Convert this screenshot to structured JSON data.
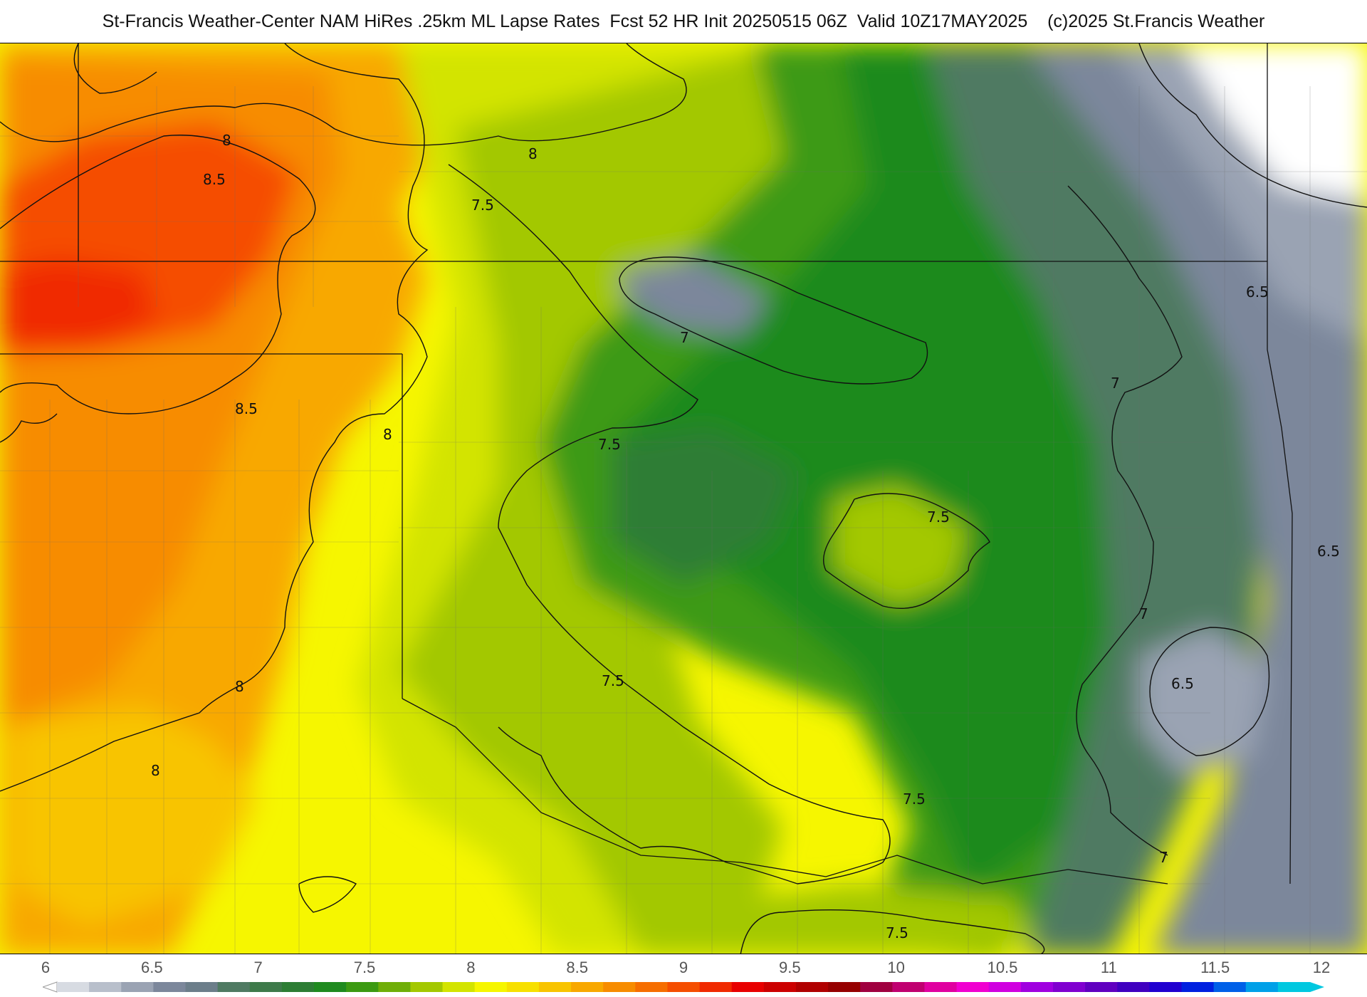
{
  "header": {
    "title": "St-Francis Weather-Center NAM HiRes .25km ML Lapse Rates  Fcst 52 HR Init 20250515 06Z  Valid 10Z17MAY2025    (c)2025 St.Francis Weather"
  },
  "map": {
    "contour_labels": [
      {
        "text": "8"
      },
      {
        "text": "8"
      },
      {
        "text": "8.5"
      },
      {
        "text": "7.5"
      },
      {
        "text": "7"
      },
      {
        "text": "6.5"
      },
      {
        "text": "8.5"
      },
      {
        "text": "8"
      },
      {
        "text": "7.5"
      },
      {
        "text": "7.5"
      },
      {
        "text": "7"
      },
      {
        "text": "6.5"
      },
      {
        "text": "7"
      },
      {
        "text": "6.5"
      },
      {
        "text": "8"
      },
      {
        "text": "7.5"
      },
      {
        "text": "8"
      },
      {
        "text": "7.5"
      },
      {
        "text": "7"
      },
      {
        "text": "7.5"
      }
    ]
  },
  "legend": {
    "ticks": [
      "6",
      "6.5",
      "7",
      "7.5",
      "8",
      "8.5",
      "9",
      "9.5",
      "10",
      "10.5",
      "11",
      "11.5",
      "12"
    ],
    "colors": [
      "#d7dbe2",
      "#b8bfcb",
      "#9aa3b3",
      "#7c879b",
      "#6c7e8a",
      "#4f7a62",
      "#3e7a4a",
      "#2d7d34",
      "#1f8a1f",
      "#3c9a12",
      "#6fae08",
      "#a3c800",
      "#d3e400",
      "#f6f600",
      "#f7e000",
      "#f8c400",
      "#f8a800",
      "#f78c00",
      "#f66e00",
      "#f54e00",
      "#f02a00",
      "#e80000",
      "#cc0000",
      "#b00000",
      "#960000",
      "#a00040",
      "#c00070",
      "#e000a0",
      "#f000d0",
      "#d000e0",
      "#a000e0",
      "#8000d0",
      "#6000c0",
      "#4000c0",
      "#2000d0",
      "#0020e0",
      "#0060e8",
      "#00a0e8",
      "#00c8e0"
    ],
    "accent_arrow_color": "#00c8e0"
  }
}
